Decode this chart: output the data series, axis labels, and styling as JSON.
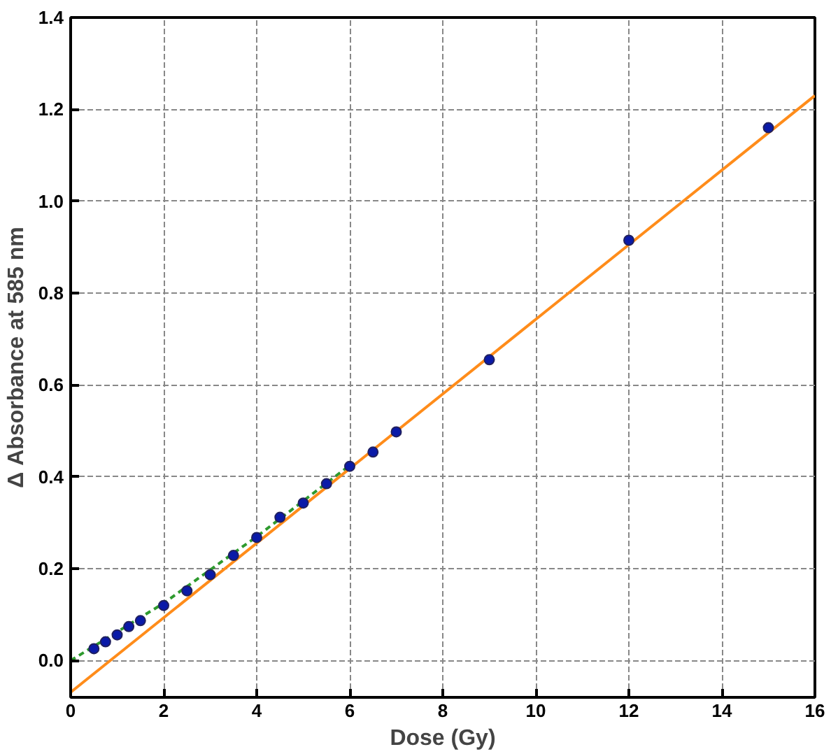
{
  "chart_data": {
    "type": "scatter",
    "xlabel": "Dose (Gy)",
    "ylabel": "Δ Absorbance at 585 nm",
    "xlim": [
      0,
      16
    ],
    "ylim": [
      -0.08,
      1.4
    ],
    "xticks": [
      0,
      2,
      4,
      6,
      8,
      10,
      12,
      14,
      16
    ],
    "yticks": [
      {
        "value": 0,
        "label": "0.0"
      },
      0.2,
      0.4,
      0.6,
      0.8,
      {
        "value": 1,
        "label": "1.0"
      },
      1.2,
      1.4
    ],
    "grid": true,
    "series": [
      {
        "type": "line",
        "color": "#2e9a2e",
        "line_style": "dashed",
        "x": [
          0,
          2,
          4,
          6
        ],
        "values": [
          0,
          0.125,
          0.27,
          0.425
        ]
      },
      {
        "type": "line",
        "color": "#ff8c1a",
        "line_style": "solid",
        "x": [
          0,
          16
        ],
        "values": [
          -0.069,
          1.23
        ]
      },
      {
        "marker": "circle",
        "color": "#0a1aa8",
        "x": [
          0.5,
          0.75,
          1,
          1.25,
          1.5,
          2,
          2.5,
          3,
          3.5,
          4,
          4.5,
          5,
          5.5,
          6,
          6.5,
          7,
          9,
          12,
          15
        ],
        "values": [
          0.026,
          0.041,
          0.056,
          0.074,
          0.087,
          0.12,
          0.152,
          0.187,
          0.229,
          0.268,
          0.312,
          0.343,
          0.385,
          0.423,
          0.454,
          0.498,
          0.655,
          0.915,
          1.16
        ]
      }
    ]
  }
}
